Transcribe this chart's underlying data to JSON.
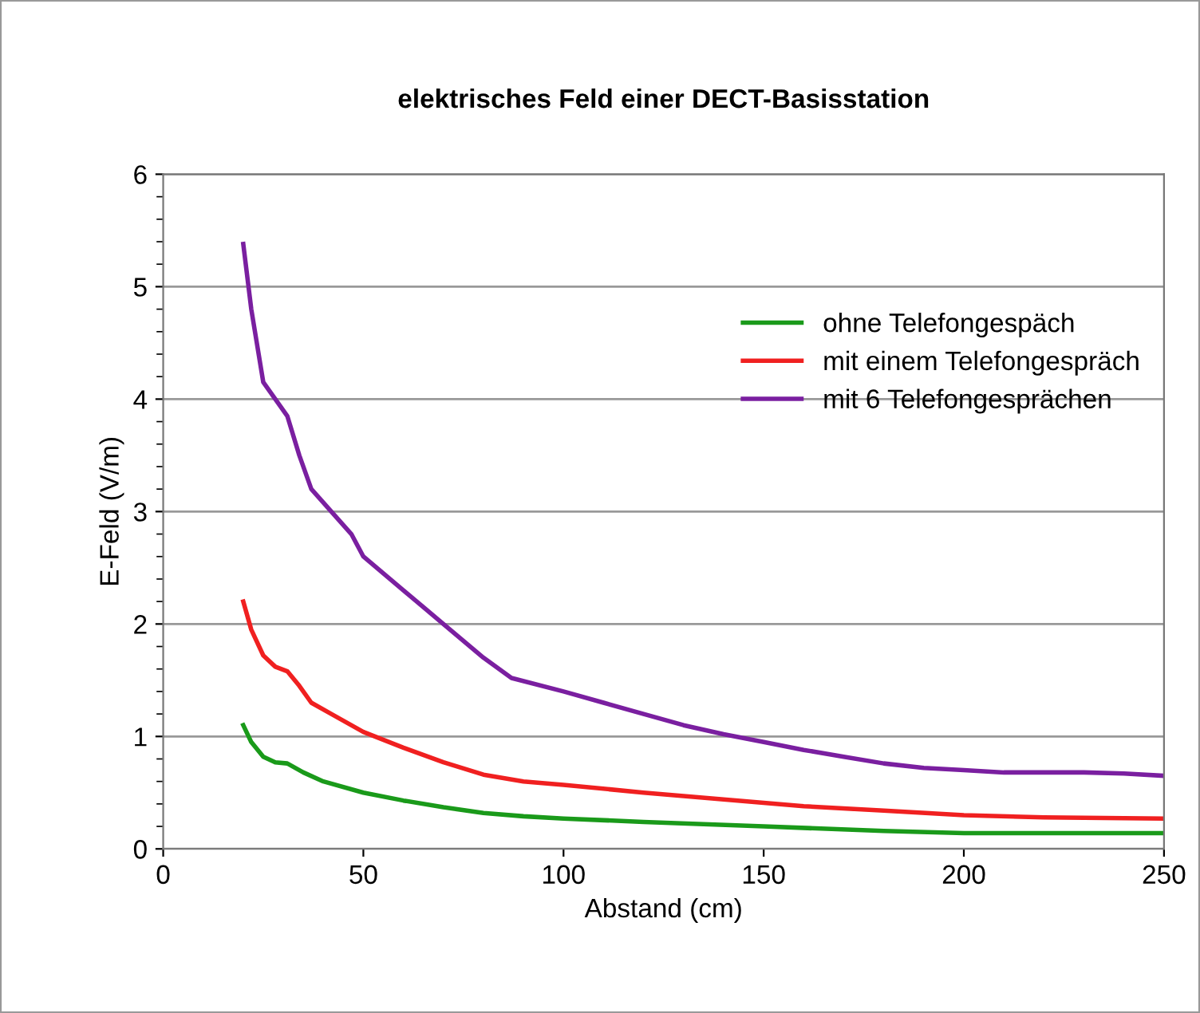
{
  "chart_data": {
    "type": "line",
    "title": "elektrisches Feld einer DECT-Basisstation",
    "xlabel": "Abstand (cm)",
    "ylabel": "E-Feld (V/m)",
    "xlim": [
      0,
      250
    ],
    "xticks": [
      0,
      50,
      100,
      150,
      200,
      250
    ],
    "ylim": [
      0,
      6
    ],
    "yticks": [
      0,
      1,
      2,
      3,
      4,
      5,
      6
    ],
    "grid": "y",
    "legend": "right",
    "marker": "none",
    "line_style": "solid",
    "series": [
      {
        "name": "ohne Telefongespäch",
        "color": "#1a9a1a",
        "x": [
          20,
          22,
          25,
          28,
          31,
          35,
          40,
          50,
          60,
          70,
          80,
          90,
          100,
          120,
          150,
          180,
          200,
          250
        ],
        "values": [
          1.1,
          0.95,
          0.82,
          0.77,
          0.76,
          0.68,
          0.6,
          0.5,
          0.43,
          0.37,
          0.32,
          0.29,
          0.27,
          0.24,
          0.2,
          0.16,
          0.14,
          0.14
        ]
      },
      {
        "name": "mit einem Telefongespräch",
        "color": "#f02020",
        "x": [
          20,
          22,
          25,
          28,
          31,
          34,
          37,
          42,
          50,
          60,
          70,
          80,
          90,
          100,
          120,
          140,
          160,
          180,
          200,
          220,
          250
        ],
        "values": [
          2.2,
          1.95,
          1.72,
          1.62,
          1.58,
          1.45,
          1.3,
          1.2,
          1.04,
          0.9,
          0.77,
          0.66,
          0.6,
          0.57,
          0.5,
          0.44,
          0.38,
          0.34,
          0.3,
          0.28,
          0.27
        ]
      },
      {
        "name": "mit 6 Telefongesprächen",
        "color": "#7a1fa0",
        "x": [
          20,
          22,
          25,
          28,
          31,
          34,
          37,
          42,
          47,
          50,
          55,
          60,
          70,
          80,
          87,
          100,
          110,
          120,
          130,
          140,
          150,
          160,
          170,
          180,
          190,
          200,
          210,
          220,
          230,
          240,
          250
        ],
        "values": [
          5.38,
          4.8,
          4.15,
          4.0,
          3.85,
          3.5,
          3.2,
          3.0,
          2.8,
          2.6,
          2.45,
          2.3,
          2.0,
          1.7,
          1.52,
          1.4,
          1.3,
          1.2,
          1.1,
          1.02,
          0.95,
          0.88,
          0.82,
          0.76,
          0.72,
          0.7,
          0.68,
          0.68,
          0.68,
          0.67,
          0.65
        ]
      }
    ]
  }
}
